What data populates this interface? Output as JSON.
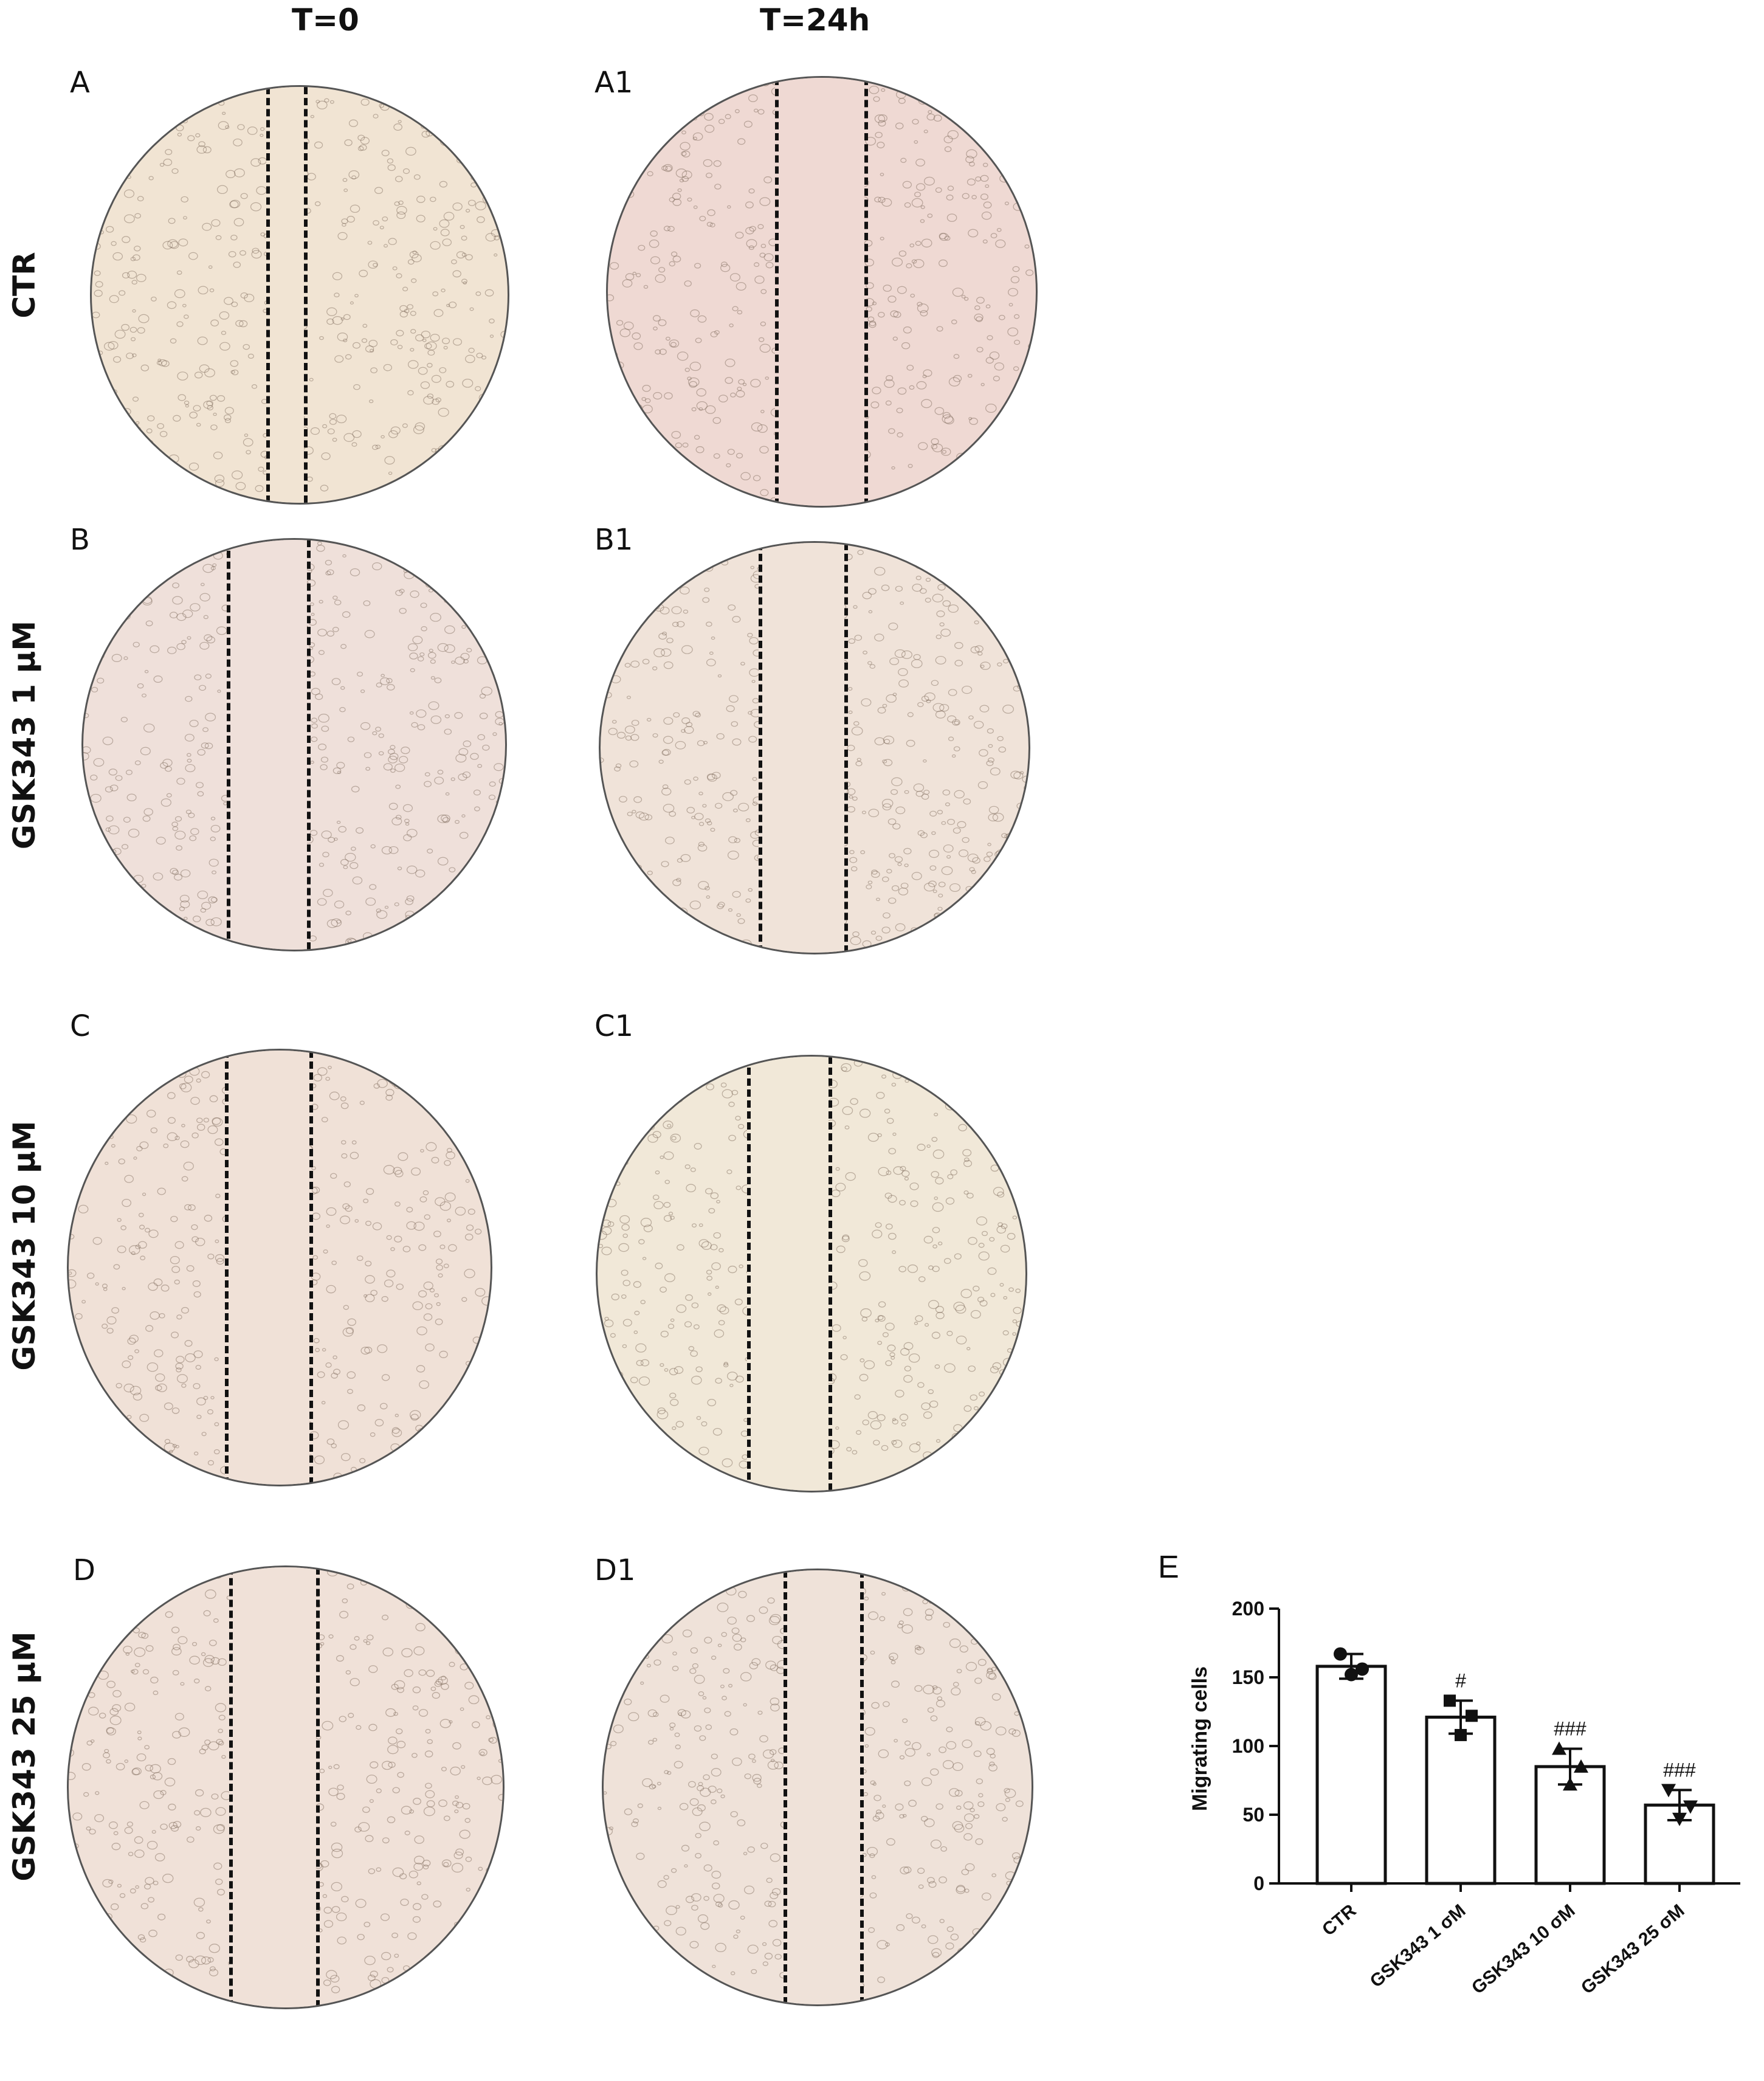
{
  "figure": {
    "column_titles": [
      "T=0",
      "T=24h"
    ],
    "row_labels": [
      "CTR",
      "GSK343 1 µM",
      "GSK343 10 µM",
      "GSK343 25 µM"
    ],
    "panels": [
      {
        "label": "A",
        "condition": "CTR",
        "time": "T=0",
        "tint": "#f1e4d3"
      },
      {
        "label": "A1",
        "condition": "CTR",
        "time": "T=24h",
        "tint": "#efd9d3"
      },
      {
        "label": "B",
        "condition": "GSK343 1 µM",
        "time": "T=0",
        "tint": "#efe0da"
      },
      {
        "label": "B1",
        "condition": "GSK343 1 µM",
        "time": "T=24h",
        "tint": "#f0e3d9"
      },
      {
        "label": "C",
        "condition": "GSK343 10 µM",
        "time": "T=0",
        "tint": "#f0e1d7"
      },
      {
        "label": "C1",
        "condition": "GSK343 10 µM",
        "time": "T=24h",
        "tint": "#f1e8d8"
      },
      {
        "label": "D",
        "condition": "GSK343 25 µM",
        "time": "T=0",
        "tint": "#f0e1d8"
      },
      {
        "label": "D1",
        "condition": "GSK343 25 µM",
        "time": "T=24h",
        "tint": "#efe2d9"
      }
    ]
  },
  "chart_data": {
    "panel_label": "E",
    "type": "bar",
    "categories": [
      "CTR",
      "GSK343 1 σM",
      "GSK343 10 σM",
      "GSK343 25 σM"
    ],
    "values": [
      158,
      121,
      85,
      57
    ],
    "errors": [
      9,
      12,
      13,
      11
    ],
    "points": [
      [
        167,
        152,
        156
      ],
      [
        133,
        108,
        122
      ],
      [
        98,
        72,
        85
      ],
      [
        68,
        47,
        56
      ]
    ],
    "markers": [
      "circle",
      "square",
      "triangle-up",
      "triangle-down"
    ],
    "significance": [
      "",
      "#",
      "###",
      "###"
    ],
    "ylabel": "Migrating cells",
    "xlabel": "",
    "ylim": [
      0,
      200
    ],
    "yticks": [
      0,
      50,
      100,
      150,
      200
    ]
  }
}
